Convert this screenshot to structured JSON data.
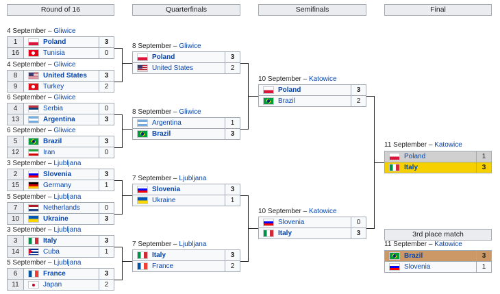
{
  "headers": {
    "r16": "Round of 16",
    "qf": "Quarterfinals",
    "sf": "Semifinals",
    "final": "Final",
    "third": "3rd place match"
  },
  "r16": [
    {
      "date": "4 September",
      "venue": "Gliwice",
      "teams": [
        {
          "seed": "1",
          "name": "Poland",
          "score": "3",
          "flag": "poland-flag",
          "win": true
        },
        {
          "seed": "16",
          "name": "Tunisia",
          "score": "0",
          "flag": "tunisia-flag",
          "win": false
        }
      ]
    },
    {
      "date": "4 September",
      "venue": "Gliwice",
      "teams": [
        {
          "seed": "8",
          "name": "United States",
          "score": "3",
          "flag": "usa-flag",
          "win": true
        },
        {
          "seed": "9",
          "name": "Turkey",
          "score": "2",
          "flag": "turkey-flag",
          "win": false
        }
      ]
    },
    {
      "date": "6 September",
      "venue": "Gliwice",
      "teams": [
        {
          "seed": "4",
          "name": "Serbia",
          "score": "0",
          "flag": "serbia-flag",
          "win": false
        },
        {
          "seed": "13",
          "name": "Argentina",
          "score": "3",
          "flag": "argentina-flag",
          "win": true
        }
      ]
    },
    {
      "date": "6 September",
      "venue": "Gliwice",
      "teams": [
        {
          "seed": "5",
          "name": "Brazil",
          "score": "3",
          "flag": "brazil-flag",
          "win": true
        },
        {
          "seed": "12",
          "name": "Iran",
          "score": "0",
          "flag": "iran-flag",
          "win": false
        }
      ]
    },
    {
      "date": "3 September",
      "venue": "Ljubljana",
      "teams": [
        {
          "seed": "2",
          "name": "Slovenia",
          "score": "3",
          "flag": "slovenia-flag",
          "win": true
        },
        {
          "seed": "15",
          "name": "Germany",
          "score": "1",
          "flag": "germany-flag",
          "win": false
        }
      ]
    },
    {
      "date": "5 September",
      "venue": "Ljubljana",
      "teams": [
        {
          "seed": "7",
          "name": "Netherlands",
          "score": "0",
          "flag": "netherlands-flag",
          "win": false
        },
        {
          "seed": "10",
          "name": "Ukraine",
          "score": "3",
          "flag": "ukraine-flag",
          "win": true
        }
      ]
    },
    {
      "date": "3 September",
      "venue": "Ljubljana",
      "teams": [
        {
          "seed": "3",
          "name": "Italy",
          "score": "3",
          "flag": "italy-flag",
          "win": true
        },
        {
          "seed": "14",
          "name": "Cuba",
          "score": "1",
          "flag": "cuba-flag",
          "win": false
        }
      ]
    },
    {
      "date": "5 September",
      "venue": "Ljubljana",
      "teams": [
        {
          "seed": "6",
          "name": "France",
          "score": "3",
          "flag": "france-flag",
          "win": true
        },
        {
          "seed": "11",
          "name": "Japan",
          "score": "2",
          "flag": "japan-flag",
          "win": false
        }
      ]
    }
  ],
  "qf": [
    {
      "date": "8 September",
      "venue": "Gliwice",
      "teams": [
        {
          "name": "Poland",
          "score": "3",
          "flag": "poland-flag",
          "win": true
        },
        {
          "name": "United States",
          "score": "2",
          "flag": "usa-flag",
          "win": false
        }
      ]
    },
    {
      "date": "8 September",
      "venue": "Gliwice",
      "teams": [
        {
          "name": "Argentina",
          "score": "1",
          "flag": "argentina-flag",
          "win": false
        },
        {
          "name": "Brazil",
          "score": "3",
          "flag": "brazil-flag",
          "win": true
        }
      ]
    },
    {
      "date": "7 September",
      "venue": "Ljubljana",
      "teams": [
        {
          "name": "Slovenia",
          "score": "3",
          "flag": "slovenia-flag",
          "win": true
        },
        {
          "name": "Ukraine",
          "score": "1",
          "flag": "ukraine-flag",
          "win": false
        }
      ]
    },
    {
      "date": "7 September",
      "venue": "Ljubljana",
      "teams": [
        {
          "name": "Italy",
          "score": "3",
          "flag": "italy-flag",
          "win": true
        },
        {
          "name": "France",
          "score": "2",
          "flag": "france-flag",
          "win": false
        }
      ]
    }
  ],
  "sf": [
    {
      "date": "10 September",
      "venue": "Katowice",
      "teams": [
        {
          "name": "Poland",
          "score": "3",
          "flag": "poland-flag",
          "win": true
        },
        {
          "name": "Brazil",
          "score": "2",
          "flag": "brazil-flag",
          "win": false
        }
      ]
    },
    {
      "date": "10 September",
      "venue": "Katowice",
      "teams": [
        {
          "name": "Slovenia",
          "score": "0",
          "flag": "slovenia-flag",
          "win": false
        },
        {
          "name": "Italy",
          "score": "3",
          "flag": "italy-flag",
          "win": true
        }
      ]
    }
  ],
  "final": {
    "date": "11 September",
    "venue": "Katowice",
    "teams": [
      {
        "name": "Poland",
        "score": "1",
        "flag": "poland-flag",
        "win": false,
        "medal": "silver"
      },
      {
        "name": "Italy",
        "score": "3",
        "flag": "italy-flag",
        "win": true,
        "medal": "gold"
      }
    ]
  },
  "third": {
    "date": "11 September",
    "venue": "Katowice",
    "teams": [
      {
        "name": "Brazil",
        "score": "3",
        "flag": "brazil-flag",
        "win": true,
        "medal": "bronze"
      },
      {
        "name": "Slovenia",
        "score": "1",
        "flag": "slovenia-flag",
        "win": false,
        "medal": ""
      }
    ]
  },
  "date_separator": " – ",
  "colors": {
    "gold": "#f6d000",
    "silver": "#d0d0d0",
    "bronze": "#cc9966",
    "link": "#0645ad"
  }
}
